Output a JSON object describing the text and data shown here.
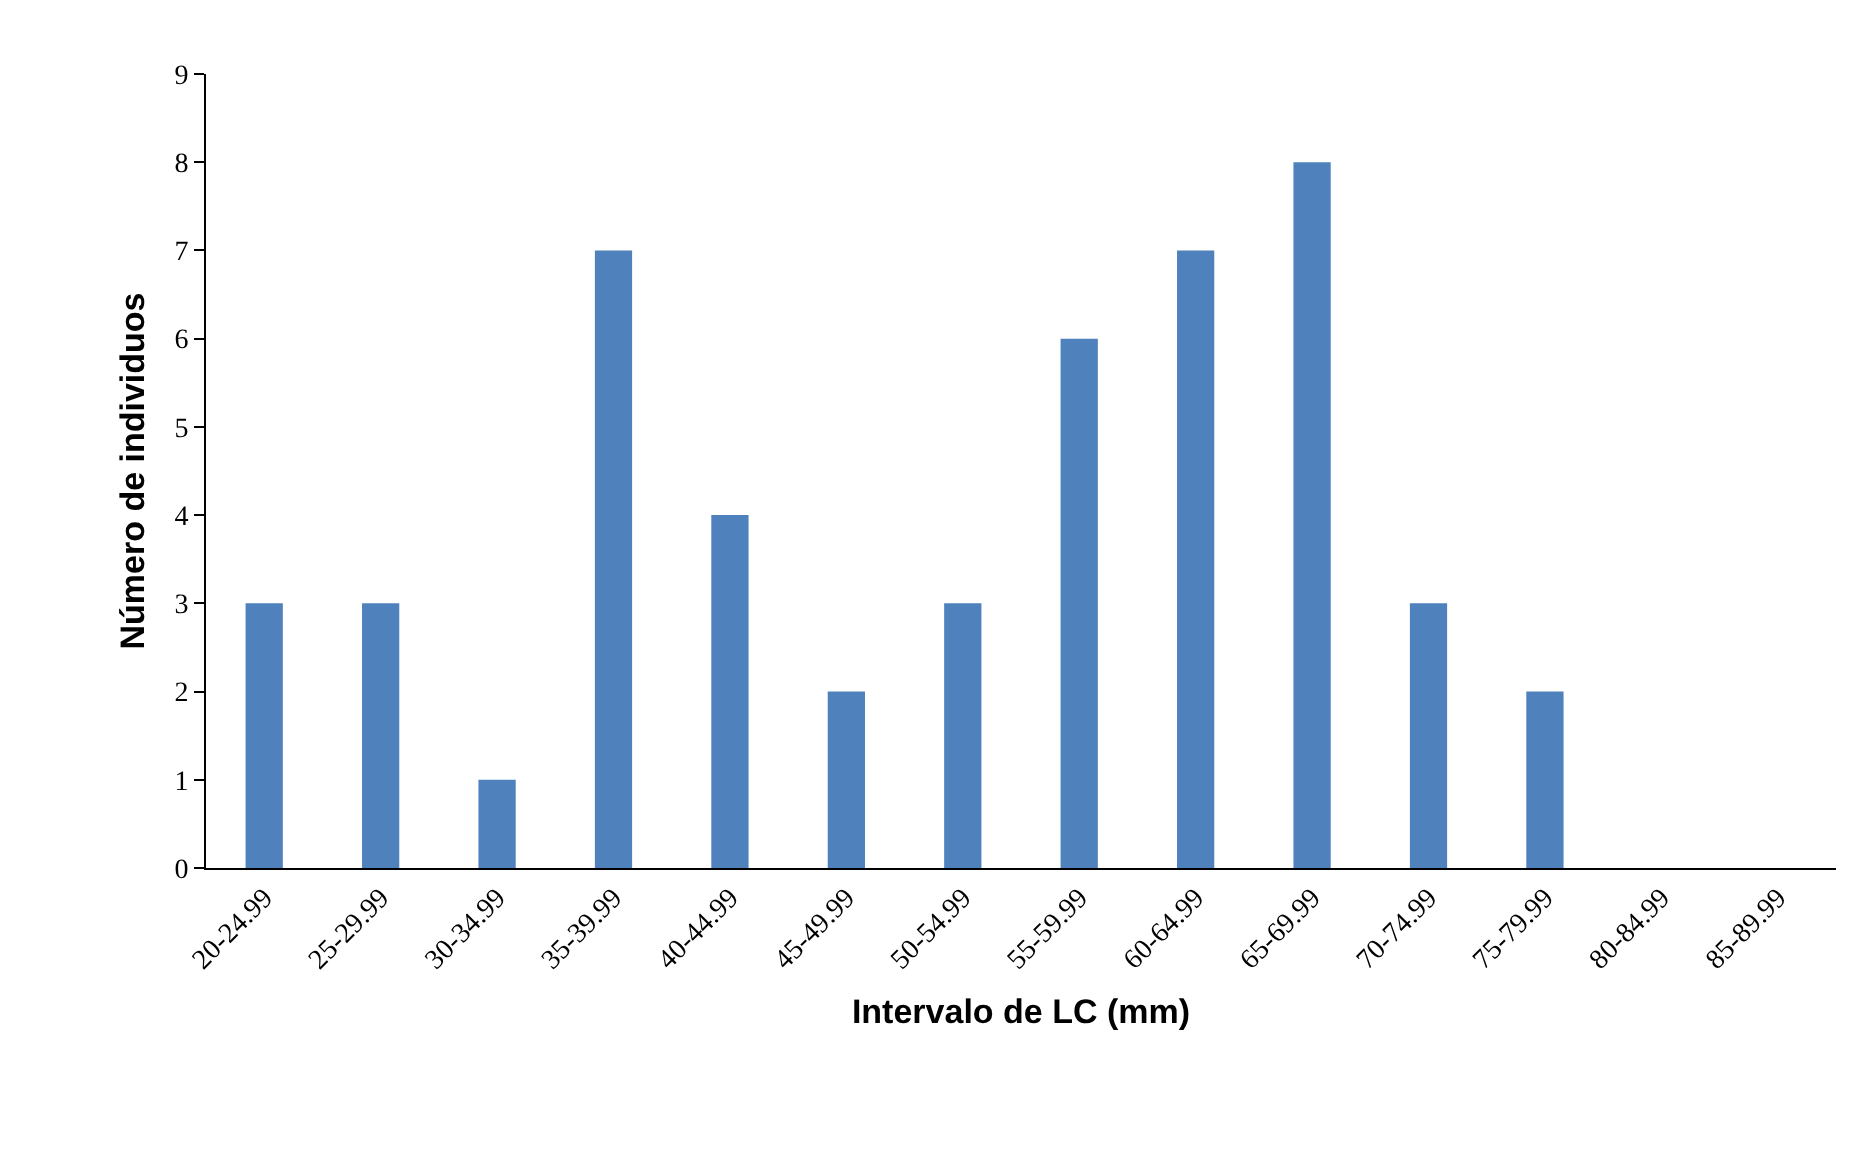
{
  "chart_data": {
    "type": "bar",
    "xlabel": "Intervalo de LC (mm)",
    "ylabel": "Número de individuos",
    "categories": [
      "20-24.99",
      "25-29.99",
      "30-34.99",
      "35-39.99",
      "40-44.99",
      "45-49.99",
      "50-54.99",
      "55-59.99",
      "60-64.99",
      "65-69.99",
      "70-74.99",
      "75-79.99",
      "80-84.99",
      "85-89.99"
    ],
    "values": [
      3,
      3,
      1,
      7,
      4,
      2,
      3,
      6,
      7,
      8,
      3,
      2,
      0,
      0
    ],
    "color": "#4f81bd",
    "ylim": [
      0,
      9
    ],
    "yticks": [
      0,
      1,
      2,
      3,
      4,
      5,
      6,
      7,
      8,
      9
    ]
  }
}
